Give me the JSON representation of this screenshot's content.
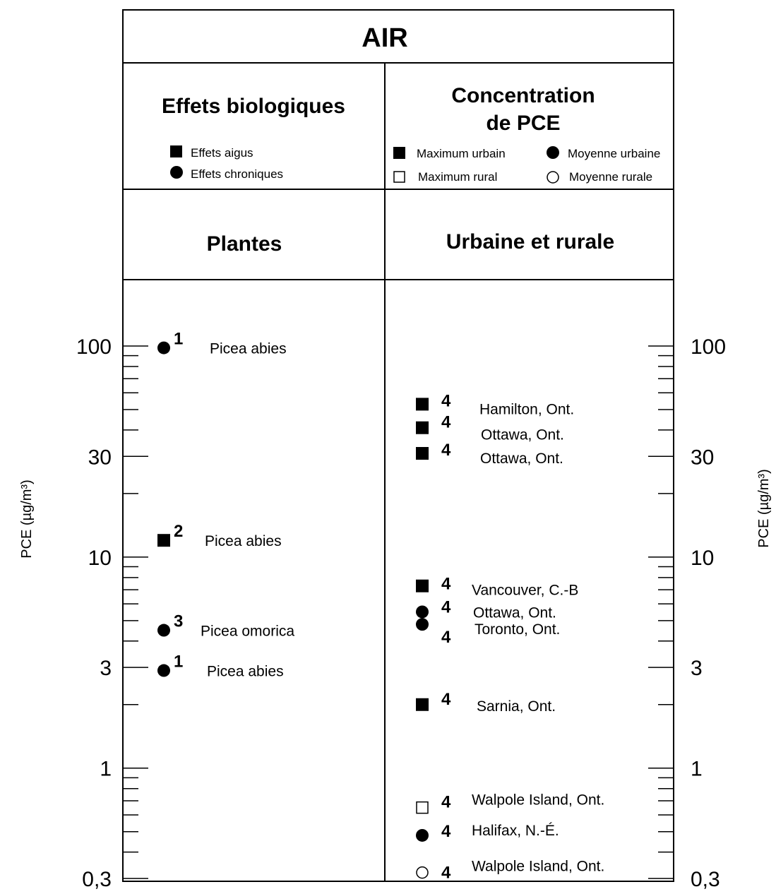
{
  "chart_data": {
    "type": "scatter",
    "title": "AIR",
    "yscale": "log",
    "ylim": [
      0.3,
      200
    ],
    "ylabel_left": "PCE (µg/m³)",
    "ylabel_right": "PCE (µg/m³)",
    "yticks": [
      {
        "value": 100,
        "label": "100"
      },
      {
        "value": 30,
        "label": "30"
      },
      {
        "value": 10,
        "label": "10"
      },
      {
        "value": 3,
        "label": "3"
      },
      {
        "value": 1,
        "label": "1"
      },
      {
        "value": 0.3,
        "label": "0,3"
      }
    ],
    "panels": [
      {
        "header": "Effets biologiques",
        "subheader": "Plantes",
        "legend": [
          {
            "marker": "square-filled",
            "label": "Effets aigus"
          },
          {
            "marker": "circle-filled",
            "label": "Effets chroniques"
          }
        ],
        "points": [
          {
            "label": "Picea abies",
            "ref": "1",
            "marker": "circle-filled",
            "y": 98
          },
          {
            "label": "Picea abies",
            "ref": "2",
            "marker": "square-filled",
            "y": 12
          },
          {
            "label": "Picea omorica",
            "ref": "3",
            "marker": "circle-filled",
            "y": 4.5
          },
          {
            "label": "Picea abies",
            "ref": "1",
            "marker": "circle-filled",
            "y": 2.9
          }
        ]
      },
      {
        "header": "Concentration de PCE",
        "header_lines": [
          "Concentration",
          "de PCE"
        ],
        "subheader": "Urbaine et rurale",
        "legend": [
          {
            "marker": "square-filled",
            "label": "Maximum urbain"
          },
          {
            "marker": "circle-filled",
            "label": "Moyenne urbaine"
          },
          {
            "marker": "square-open",
            "label": "Maximum rural"
          },
          {
            "marker": "circle-open",
            "label": "Moyenne rurale"
          }
        ],
        "points": [
          {
            "label": "Hamilton, Ont.",
            "ref": "4",
            "marker": "square-filled",
            "y": 53
          },
          {
            "label": "Ottawa, Ont.",
            "ref": "4",
            "marker": "square-filled",
            "y": 41
          },
          {
            "label": "Ottawa, Ont.",
            "ref": "4",
            "marker": "square-filled",
            "y": 31
          },
          {
            "label": "Vancouver, C.-B",
            "ref": "4",
            "marker": "square-filled",
            "y": 7.3
          },
          {
            "label": "Ottawa, Ont.",
            "ref": "4",
            "marker": "circle-filled",
            "y": 5.5
          },
          {
            "label": "Toronto, Ont.",
            "ref": "4",
            "marker": "circle-filled",
            "y": 4.8
          },
          {
            "label": "Sarnia, Ont.",
            "ref": "4",
            "marker": "square-filled",
            "y": 2.0
          },
          {
            "label": "Walpole Island, Ont.",
            "ref": "4",
            "marker": "square-open",
            "y": 0.65
          },
          {
            "label": "Halifax, N.-É.",
            "ref": "4",
            "marker": "circle-filled",
            "y": 0.48
          },
          {
            "label": "Walpole Island, Ont.",
            "ref": "4",
            "marker": "circle-open",
            "y": 0.32
          }
        ]
      }
    ]
  }
}
